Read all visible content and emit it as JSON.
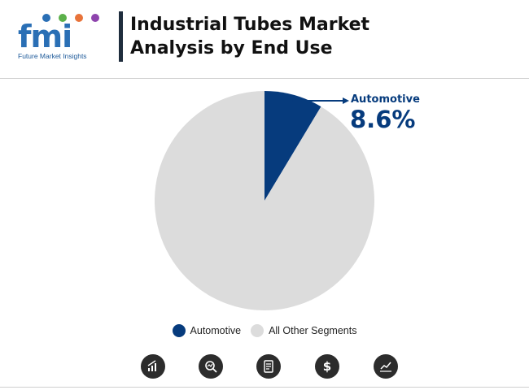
{
  "logo": {
    "letters": "fmi",
    "tagline": "Future Market Insights"
  },
  "title_line1": "Industrial Tubes Market",
  "title_line2": "Analysis by End Use",
  "colors": {
    "automotive": "#063b7d",
    "other": "#dcdcdc",
    "accent": "#063b7d",
    "icon_bg": "#2c2c2c"
  },
  "chart_data": {
    "type": "pie",
    "title": "Industrial Tubes Market Analysis by End Use",
    "slices": [
      {
        "name": "Automotive",
        "value": 8.6,
        "label": "8.6%",
        "color": "#063b7d"
      },
      {
        "name": "All Other Segments",
        "value": 91.4,
        "color": "#dcdcdc"
      }
    ],
    "start_angle_deg": 0,
    "direction": "clockwise",
    "annotation": {
      "label": "Automotive",
      "value_text": "8.6%"
    },
    "legend": {
      "placement": "bottom",
      "entries": [
        "Automotive",
        "All Other Segments"
      ]
    }
  },
  "footer_icons": [
    "bar-chart-icon",
    "magnifier-chart-icon",
    "report-icon",
    "dollar-icon",
    "line-chart-icon"
  ]
}
